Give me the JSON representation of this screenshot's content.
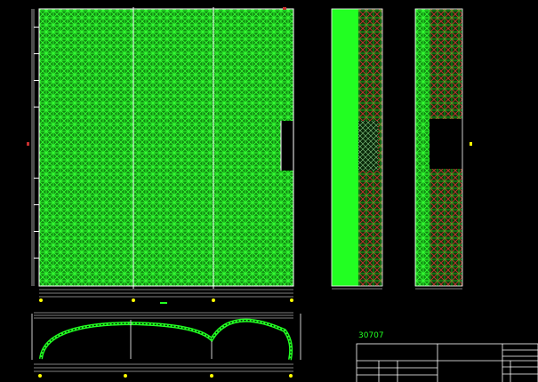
{
  "drawing": {
    "caption": "30707",
    "title_block": {
      "project": "",
      "drawing_name": "",
      "labels": []
    },
    "colors": {
      "background": "#000000",
      "truss": "#22ff22",
      "members_red": "#c83030",
      "lines": "#ffffff",
      "axis_markers": "#ffff00"
    }
  }
}
